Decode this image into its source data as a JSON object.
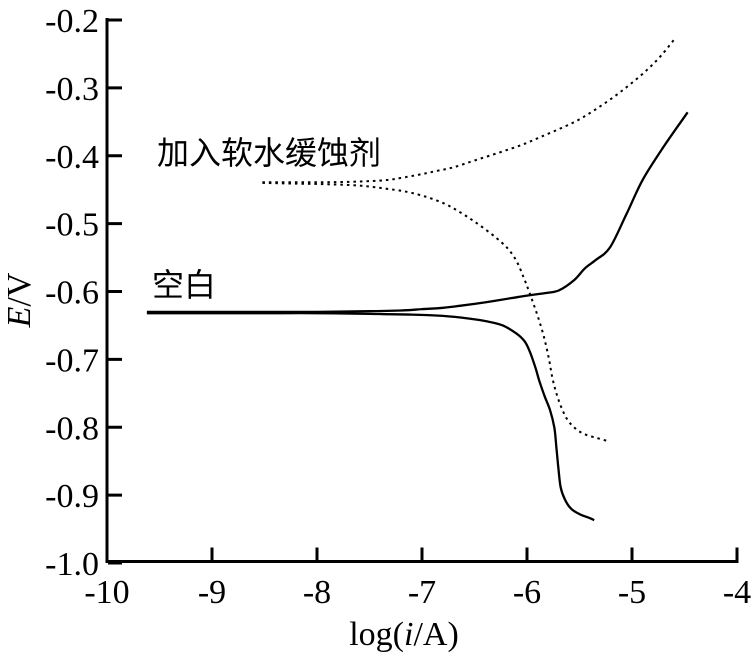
{
  "figure": {
    "background_color": "#ffffff",
    "line_color": "#000000"
  },
  "chart_data": {
    "type": "line",
    "title": "",
    "xlabel": "log(i/A)",
    "ylabel": "E/V",
    "xlabel_parts": [
      [
        "log(",
        false
      ],
      [
        "i",
        true
      ],
      [
        "/A)",
        false
      ]
    ],
    "ylabel_parts": [
      [
        "E",
        true
      ],
      [
        "/V",
        false
      ]
    ],
    "xlim": [
      -10,
      -4
    ],
    "ylim": [
      -1.0,
      -0.2
    ],
    "grid": false,
    "legend_position": "inline-annotations",
    "x_ticks": [
      -10,
      -9,
      -8,
      -7,
      -6,
      -5,
      -4
    ],
    "x_tick_labels": [
      "-10",
      "-9",
      "-8",
      "-7",
      "-6",
      "-5",
      "-4"
    ],
    "y_ticks": [
      -1.0,
      -0.9,
      -0.8,
      -0.7,
      -0.6,
      -0.5,
      -0.4,
      -0.3,
      -0.2
    ],
    "y_tick_labels": [
      "-1.0",
      "-0.9",
      "-0.8",
      "-0.7",
      "-0.6",
      "-0.5",
      "-0.4",
      "-0.3",
      "-0.2"
    ],
    "series": [
      {
        "name": "空白",
        "line_style": "solid",
        "color": "#000000",
        "corrosion_potential_V": -0.63,
        "branches": {
          "anodic": [
            [
              -9.62,
              -0.63
            ],
            [
              -9.0,
              -0.63
            ],
            [
              -8.5,
              -0.63
            ],
            [
              -8.0,
              -0.63
            ],
            [
              -7.5,
              -0.629
            ],
            [
              -7.2,
              -0.628
            ],
            [
              -7.0,
              -0.626
            ],
            [
              -6.8,
              -0.624
            ],
            [
              -6.64,
              -0.621
            ],
            [
              -6.4,
              -0.616
            ],
            [
              -6.16,
              -0.61
            ],
            [
              -6.0,
              -0.606
            ],
            [
              -5.81,
              -0.602
            ],
            [
              -5.69,
              -0.598
            ],
            [
              -5.55,
              -0.583
            ],
            [
              -5.45,
              -0.566
            ],
            [
              -5.35,
              -0.554
            ],
            [
              -5.21,
              -0.535
            ],
            [
              -5.05,
              -0.485
            ],
            [
              -4.9,
              -0.436
            ],
            [
              -4.7,
              -0.387
            ],
            [
              -4.57,
              -0.358
            ],
            [
              -4.47,
              -0.336
            ]
          ],
          "cathodic": [
            [
              -9.62,
              -0.632
            ],
            [
              -9.0,
              -0.632
            ],
            [
              -8.5,
              -0.632
            ],
            [
              -8.0,
              -0.632
            ],
            [
              -7.5,
              -0.633
            ],
            [
              -7.1,
              -0.634
            ],
            [
              -6.8,
              -0.636
            ],
            [
              -6.55,
              -0.64
            ],
            [
              -6.38,
              -0.644
            ],
            [
              -6.23,
              -0.65
            ],
            [
              -6.1,
              -0.662
            ],
            [
              -6.02,
              -0.674
            ],
            [
              -5.97,
              -0.69
            ],
            [
              -5.92,
              -0.712
            ],
            [
              -5.88,
              -0.733
            ],
            [
              -5.83,
              -0.755
            ],
            [
              -5.78,
              -0.775
            ],
            [
              -5.74,
              -0.8
            ],
            [
              -5.72,
              -0.83
            ],
            [
              -5.7,
              -0.862
            ],
            [
              -5.68,
              -0.888
            ],
            [
              -5.64,
              -0.906
            ],
            [
              -5.58,
              -0.92
            ],
            [
              -5.5,
              -0.928
            ],
            [
              -5.4,
              -0.934
            ],
            [
              -5.36,
              -0.937
            ]
          ]
        }
      },
      {
        "name": "加入软水缓蚀剂",
        "line_style": "dotted",
        "color": "#000000",
        "corrosion_potential_V": -0.44,
        "branches": {
          "anodic": [
            [
              -8.52,
              -0.439
            ],
            [
              -8.2,
              -0.439
            ],
            [
              -7.9,
              -0.439
            ],
            [
              -7.6,
              -0.438
            ],
            [
              -7.35,
              -0.436
            ],
            [
              -7.21,
              -0.433
            ],
            [
              -7.0,
              -0.427
            ],
            [
              -6.85,
              -0.422
            ],
            [
              -6.7,
              -0.417
            ],
            [
              -6.5,
              -0.407
            ],
            [
              -6.26,
              -0.395
            ],
            [
              -6.05,
              -0.384
            ],
            [
              -5.88,
              -0.373
            ],
            [
              -5.7,
              -0.361
            ],
            [
              -5.52,
              -0.348
            ],
            [
              -5.35,
              -0.332
            ],
            [
              -5.18,
              -0.314
            ],
            [
              -5.02,
              -0.295
            ],
            [
              -4.86,
              -0.274
            ],
            [
              -4.72,
              -0.252
            ],
            [
              -4.59,
              -0.227
            ]
          ],
          "cathodic": [
            [
              -8.52,
              -0.44
            ],
            [
              -8.2,
              -0.441
            ],
            [
              -7.9,
              -0.442
            ],
            [
              -7.6,
              -0.444
            ],
            [
              -7.37,
              -0.448
            ],
            [
              -7.15,
              -0.453
            ],
            [
              -6.95,
              -0.461
            ],
            [
              -6.78,
              -0.471
            ],
            [
              -6.64,
              -0.483
            ],
            [
              -6.5,
              -0.497
            ],
            [
              -6.35,
              -0.514
            ],
            [
              -6.24,
              -0.528
            ],
            [
              -6.16,
              -0.541
            ],
            [
              -6.09,
              -0.558
            ],
            [
              -6.03,
              -0.58
            ],
            [
              -5.98,
              -0.6
            ],
            [
              -5.93,
              -0.622
            ],
            [
              -5.88,
              -0.645
            ],
            [
              -5.83,
              -0.672
            ],
            [
              -5.79,
              -0.7
            ],
            [
              -5.76,
              -0.726
            ],
            [
              -5.72,
              -0.75
            ],
            [
              -5.67,
              -0.772
            ],
            [
              -5.61,
              -0.79
            ],
            [
              -5.53,
              -0.803
            ],
            [
              -5.44,
              -0.811
            ],
            [
              -5.33,
              -0.816
            ],
            [
              -5.24,
              -0.82
            ]
          ]
        }
      }
    ],
    "annotations": [
      {
        "text": "加入软水缓蚀剂",
        "series": "加入软水缓蚀剂"
      },
      {
        "text": "空白",
        "series": "空白"
      }
    ]
  }
}
